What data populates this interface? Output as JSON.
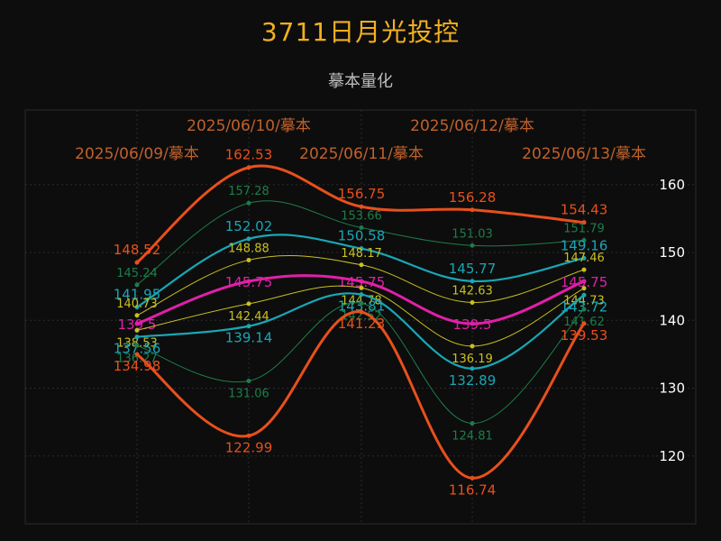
{
  "title": "3711日月光投控",
  "subtitle": "摹本量化",
  "colors": {
    "background": "#0d0d0d",
    "grid": "#2b2b2b",
    "title": "#f2b01e",
    "subtitle": "#bdbdbd",
    "date_label": "#c0612b",
    "axis_text": "#ffffff"
  },
  "chart_data": {
    "type": "line",
    "x": [
      "2025/06/09/摹本",
      "2025/06/10/摹本",
      "2025/06/11/摹本",
      "2025/06/12/摹本",
      "2025/06/13/摹本"
    ],
    "ylim": [
      110,
      171
    ],
    "yticks": [
      120,
      130,
      140,
      150,
      160
    ],
    "grid": true,
    "y_axis_side": "right",
    "series": [
      {
        "color": "#e8501c",
        "width": 3,
        "label_size": 15,
        "values": [
          148.52,
          162.53,
          156.75,
          156.28,
          154.43
        ]
      },
      {
        "color": "#1e7d4a",
        "width": 1,
        "label_size": 13,
        "values": [
          145.24,
          157.28,
          153.66,
          151.03,
          151.79
        ]
      },
      {
        "color": "#18a7b5",
        "width": 2.2,
        "label_size": 15,
        "values": [
          141.95,
          152.02,
          150.58,
          145.77,
          149.16
        ]
      },
      {
        "color": "#c9c020",
        "width": 1,
        "label_size": 13,
        "values": [
          140.73,
          148.88,
          148.17,
          142.63,
          147.46
        ]
      },
      {
        "color": "#e020a8",
        "width": 3,
        "label_size": 15,
        "values": [
          139.5,
          145.75,
          145.75,
          139.5,
          145.75
        ]
      },
      {
        "color": "#c9c020",
        "width": 1,
        "label_size": 13,
        "values": [
          138.53,
          142.44,
          144.78,
          136.19,
          144.73
        ]
      },
      {
        "color": "#18a7b5",
        "width": 2.2,
        "label_size": 15,
        "values": [
          137.56,
          139.14,
          143.81,
          132.89,
          143.72
        ]
      },
      {
        "color": "#1e7d4a",
        "width": 1,
        "label_size": 13,
        "values": [
          136.27,
          131.06,
          142.52,
          124.81,
          141.62
        ]
      },
      {
        "color": "#e8501c",
        "width": 3,
        "label_size": 15,
        "values": [
          134.98,
          122.99,
          141.23,
          116.74,
          139.53
        ]
      }
    ]
  }
}
